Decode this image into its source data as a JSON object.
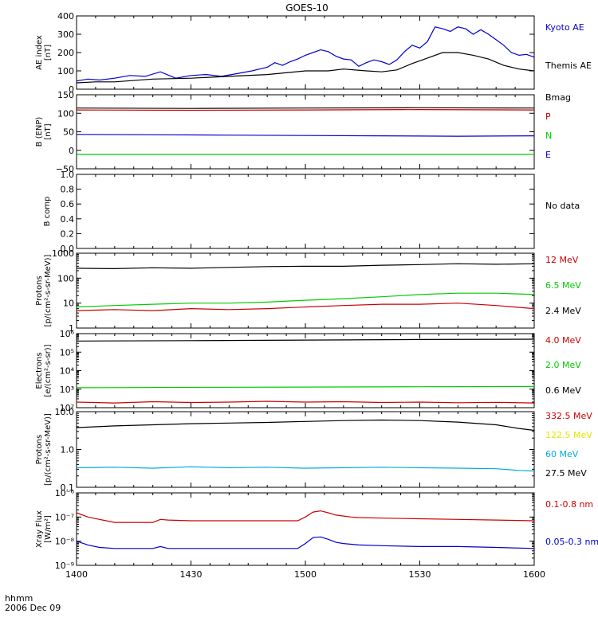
{
  "title": "GOES-10",
  "xaxis": {
    "label": "hhmm",
    "date": "2006 Dec 09",
    "ticks": [
      {
        "t": 0,
        "label": "1400"
      },
      {
        "t": 30,
        "label": "1430"
      },
      {
        "t": 60,
        "label": "1500"
      },
      {
        "t": 90,
        "label": "1530"
      },
      {
        "t": 120,
        "label": "1600"
      }
    ]
  },
  "chart_data": [
    {
      "type": "line",
      "panel": "ae",
      "ylabel": [
        "AE index",
        "[nT]"
      ],
      "scale": "linear",
      "ylim": [
        0,
        400
      ],
      "ticks": [
        {
          "v": 0,
          "label": "0"
        },
        {
          "v": 100,
          "label": "100"
        },
        {
          "v": 200,
          "label": "200"
        },
        {
          "v": 300,
          "label": "300"
        },
        {
          "v": 400,
          "label": "400"
        }
      ],
      "series": [
        {
          "name": "Kyoto AE",
          "color": "#0000cc",
          "x": [
            0,
            3,
            6,
            10,
            14,
            18,
            22,
            26,
            30,
            34,
            38,
            42,
            46,
            48,
            50,
            52,
            54,
            56,
            58,
            60,
            62,
            64,
            66,
            68,
            70,
            72,
            74,
            76,
            78,
            80,
            82,
            84,
            86,
            88,
            90,
            92,
            94,
            96,
            98,
            100,
            102,
            104,
            106,
            108,
            110,
            112,
            114,
            116,
            118,
            120
          ],
          "y": [
            45,
            55,
            50,
            60,
            75,
            70,
            95,
            60,
            75,
            80,
            70,
            85,
            100,
            110,
            120,
            145,
            130,
            150,
            165,
            185,
            200,
            215,
            205,
            180,
            165,
            160,
            125,
            145,
            160,
            150,
            135,
            160,
            205,
            240,
            225,
            260,
            340,
            330,
            315,
            340,
            330,
            300,
            325,
            300,
            270,
            240,
            200,
            185,
            190,
            175
          ]
        },
        {
          "name": "Themis AE",
          "color": "#000000",
          "x": [
            0,
            5,
            10,
            20,
            30,
            40,
            50,
            60,
            66,
            70,
            76,
            80,
            84,
            88,
            92,
            96,
            100,
            104,
            108,
            112,
            116,
            120
          ],
          "y": [
            35,
            40,
            40,
            55,
            60,
            70,
            80,
            100,
            100,
            110,
            100,
            95,
            105,
            140,
            170,
            200,
            200,
            185,
            165,
            130,
            110,
            100
          ]
        }
      ]
    },
    {
      "type": "line",
      "panel": "b",
      "ylabel": [
        "B (ENP)",
        "[nT]"
      ],
      "scale": "linear",
      "ylim": [
        -50,
        150
      ],
      "ticks": [
        {
          "v": -50,
          "label": "−50"
        },
        {
          "v": 0,
          "label": "0"
        },
        {
          "v": 50,
          "label": "50"
        },
        {
          "v": 100,
          "label": "100"
        },
        {
          "v": 150,
          "label": "150"
        }
      ],
      "series": [
        {
          "name": "Bmag",
          "color": "#000000",
          "x": [
            0,
            30,
            60,
            90,
            120
          ],
          "y": [
            114,
            113,
            114,
            115,
            114
          ]
        },
        {
          "name": "P",
          "color": "#cc0000",
          "x": [
            0,
            30,
            60,
            90,
            120
          ],
          "y": [
            109,
            108,
            109,
            110,
            109
          ]
        },
        {
          "name": "N",
          "color": "#00cc00",
          "x": [
            0,
            30,
            60,
            90,
            120
          ],
          "y": [
            -11,
            -11,
            -11,
            -11,
            -11
          ]
        },
        {
          "name": "E",
          "color": "#0000cc",
          "x": [
            0,
            20,
            40,
            60,
            80,
            100,
            120
          ],
          "y": [
            43,
            42,
            41,
            40,
            39,
            38,
            39
          ]
        }
      ]
    },
    {
      "type": "line",
      "panel": "bcomp",
      "ylabel": [
        "B comp"
      ],
      "scale": "linear",
      "ylim": [
        0,
        1
      ],
      "ticks": [
        {
          "v": 0,
          "label": "0.0"
        },
        {
          "v": 0.2,
          "label": "0.2"
        },
        {
          "v": 0.4,
          "label": "0.4"
        },
        {
          "v": 0.6,
          "label": "0.6"
        },
        {
          "v": 0.8,
          "label": "0.8"
        },
        {
          "v": 1.0,
          "label": "1.0"
        }
      ],
      "series": [],
      "note": "No data"
    },
    {
      "type": "line",
      "panel": "protons1",
      "ylabel": [
        "Protons",
        "[p/(cm²-s-sr-MeV)]"
      ],
      "scale": "log",
      "ylim": [
        1,
        1000
      ],
      "ticks": [
        {
          "v": 1,
          "label": "1"
        },
        {
          "v": 10,
          "label": "10"
        },
        {
          "v": 100,
          "label": "100"
        },
        {
          "v": 1000,
          "label": "1000"
        }
      ],
      "series": [
        {
          "name": "12 MeV",
          "color": "#cc0000",
          "x": [
            0,
            10,
            20,
            30,
            40,
            50,
            60,
            70,
            80,
            90,
            100,
            110,
            120
          ],
          "y": [
            5,
            5.5,
            5,
            6,
            5.5,
            6,
            7,
            8,
            9,
            9,
            10,
            8,
            6
          ]
        },
        {
          "name": "6.5 MeV",
          "color": "#00cc00",
          "x": [
            0,
            10,
            20,
            30,
            40,
            50,
            60,
            70,
            80,
            90,
            100,
            110,
            120
          ],
          "y": [
            7,
            8,
            9,
            10,
            10,
            11,
            13,
            15,
            18,
            22,
            25,
            25,
            22
          ]
        },
        {
          "name": "2.4 MeV",
          "color": "#000000",
          "x": [
            0,
            10,
            20,
            30,
            40,
            50,
            60,
            70,
            80,
            90,
            100,
            110,
            120
          ],
          "y": [
            250,
            240,
            260,
            250,
            270,
            290,
            300,
            300,
            330,
            350,
            380,
            360,
            380
          ]
        }
      ]
    },
    {
      "type": "line",
      "panel": "electrons",
      "ylabel": [
        "Electrons",
        "[e/(cm²-s-sr)]"
      ],
      "scale": "log",
      "ylim": [
        100,
        1000000
      ],
      "ticks": [
        {
          "v": 100,
          "label": "10²"
        },
        {
          "v": 1000,
          "label": "10³"
        },
        {
          "v": 10000,
          "label": "10⁴"
        },
        {
          "v": 100000,
          "label": "10⁵"
        },
        {
          "v": 1000000,
          "label": "10⁶"
        }
      ],
      "series": [
        {
          "name": "4.0 MeV",
          "color": "#cc0000",
          "x": [
            0,
            10,
            20,
            30,
            40,
            50,
            60,
            70,
            80,
            90,
            100,
            110,
            120
          ],
          "y": [
            200,
            180,
            210,
            190,
            200,
            220,
            200,
            210,
            190,
            200,
            185,
            195,
            180
          ]
        },
        {
          "name": "2.0 MeV",
          "color": "#00cc00",
          "x": [
            0,
            30,
            60,
            90,
            120
          ],
          "y": [
            1200,
            1250,
            1300,
            1350,
            1400
          ]
        },
        {
          "name": "0.6 MeV",
          "color": "#000000",
          "x": [
            0,
            30,
            60,
            90,
            120
          ],
          "y": [
            400000,
            420000,
            450000,
            480000,
            500000
          ]
        }
      ]
    },
    {
      "type": "line",
      "panel": "protons2",
      "ylabel": [
        "Protons",
        "[p/(cm²-s-sr-MeV)]"
      ],
      "scale": "log",
      "ylim": [
        0.1,
        10
      ],
      "ticks": [
        {
          "v": 0.1,
          "label": "0.1"
        },
        {
          "v": 1,
          "label": "1.0"
        },
        {
          "v": 10,
          "label": "10.0"
        }
      ],
      "series": [
        {
          "name": "332.5 MeV",
          "color": "#cc0000",
          "x": [],
          "y": []
        },
        {
          "name": "122.5 MeV",
          "color": "#e6e600",
          "x": [],
          "y": []
        },
        {
          "name": "60 MeV",
          "color": "#00aadd",
          "x": [
            0,
            10,
            20,
            30,
            40,
            50,
            60,
            70,
            80,
            90,
            100,
            110,
            116,
            120
          ],
          "y": [
            0.33,
            0.34,
            0.32,
            0.35,
            0.33,
            0.34,
            0.32,
            0.33,
            0.34,
            0.33,
            0.32,
            0.31,
            0.28,
            0.27
          ]
        },
        {
          "name": "27.5 MeV",
          "color": "#000000",
          "x": [
            0,
            10,
            20,
            30,
            40,
            50,
            60,
            70,
            80,
            90,
            100,
            110,
            116,
            120
          ],
          "y": [
            3.8,
            4.2,
            4.5,
            4.8,
            5,
            5.2,
            5.5,
            5.8,
            6,
            5.8,
            5.3,
            4.5,
            3.6,
            3.2
          ]
        }
      ]
    },
    {
      "type": "line",
      "panel": "xray",
      "ylabel": [
        "Xray Flux",
        "[W/m²]"
      ],
      "scale": "log",
      "ylim": [
        1e-09,
        1e-06
      ],
      "ticks": [
        {
          "v": 1e-09,
          "label": "10⁻⁹"
        },
        {
          "v": 1e-08,
          "label": "10⁻⁸"
        },
        {
          "v": 1e-07,
          "label": "10⁻⁷"
        },
        {
          "v": 1e-06,
          "label": "10⁻⁶"
        }
      ],
      "series": [
        {
          "name": "0.1-0.8 nm",
          "color": "#cc0000",
          "x": [
            0,
            3,
            6,
            10,
            20,
            22,
            24,
            30,
            40,
            50,
            58,
            60,
            62,
            64,
            66,
            68,
            70,
            72,
            74,
            80,
            90,
            100,
            110,
            120
          ],
          "y": [
            1.5e-07,
            1e-07,
            8e-08,
            6e-08,
            6e-08,
            8e-08,
            7.5e-08,
            7e-08,
            7e-08,
            7e-08,
            7e-08,
            1e-07,
            1.6e-07,
            1.8e-07,
            1.5e-07,
            1.2e-07,
            1.1e-07,
            1e-07,
            9.5e-08,
            9e-08,
            8.5e-08,
            8e-08,
            7.5e-08,
            7e-08
          ]
        },
        {
          "name": "0.05-0.3 nm",
          "color": "#0000cc",
          "x": [
            0,
            3,
            6,
            10,
            20,
            22,
            24,
            30,
            40,
            50,
            58,
            60,
            62,
            64,
            66,
            68,
            70,
            72,
            74,
            80,
            90,
            100,
            110,
            120
          ],
          "y": [
            1e-08,
            7e-09,
            5.5e-09,
            5e-09,
            5e-09,
            6e-09,
            5e-09,
            5e-09,
            5e-09,
            5e-09,
            5e-09,
            8e-09,
            1.4e-08,
            1.5e-08,
            1.2e-08,
            9e-09,
            8e-09,
            7.5e-09,
            7e-09,
            6.5e-09,
            6e-09,
            6e-09,
            5.5e-09,
            5e-09
          ]
        }
      ]
    }
  ]
}
